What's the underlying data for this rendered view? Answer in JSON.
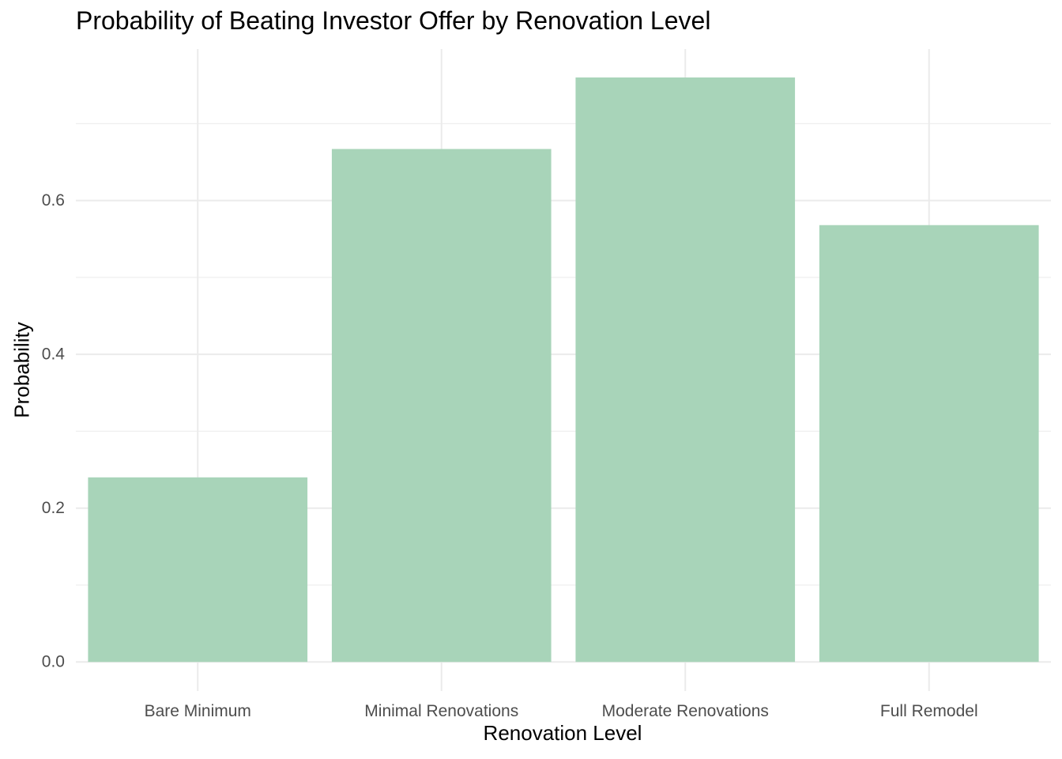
{
  "chart_data": {
    "type": "bar",
    "title": "Probability of Beating Investor Offer by Renovation Level",
    "xlabel": "Renovation Level",
    "ylabel": "Probability",
    "categories": [
      "Bare Minimum",
      "Minimal Renovations",
      "Moderate Renovations",
      "Full Remodel"
    ],
    "values": [
      0.24,
      0.667,
      0.76,
      0.568
    ],
    "ylim": [
      -0.0378,
      0.797
    ],
    "yticks": [
      0.0,
      0.2,
      0.4,
      0.6
    ],
    "ytick_labels": [
      "0.0",
      "0.2",
      "0.4",
      "0.6"
    ],
    "grid": true,
    "legend": "none",
    "bar_color": "#a8d4b9",
    "grid_color": "#ebebeb"
  }
}
